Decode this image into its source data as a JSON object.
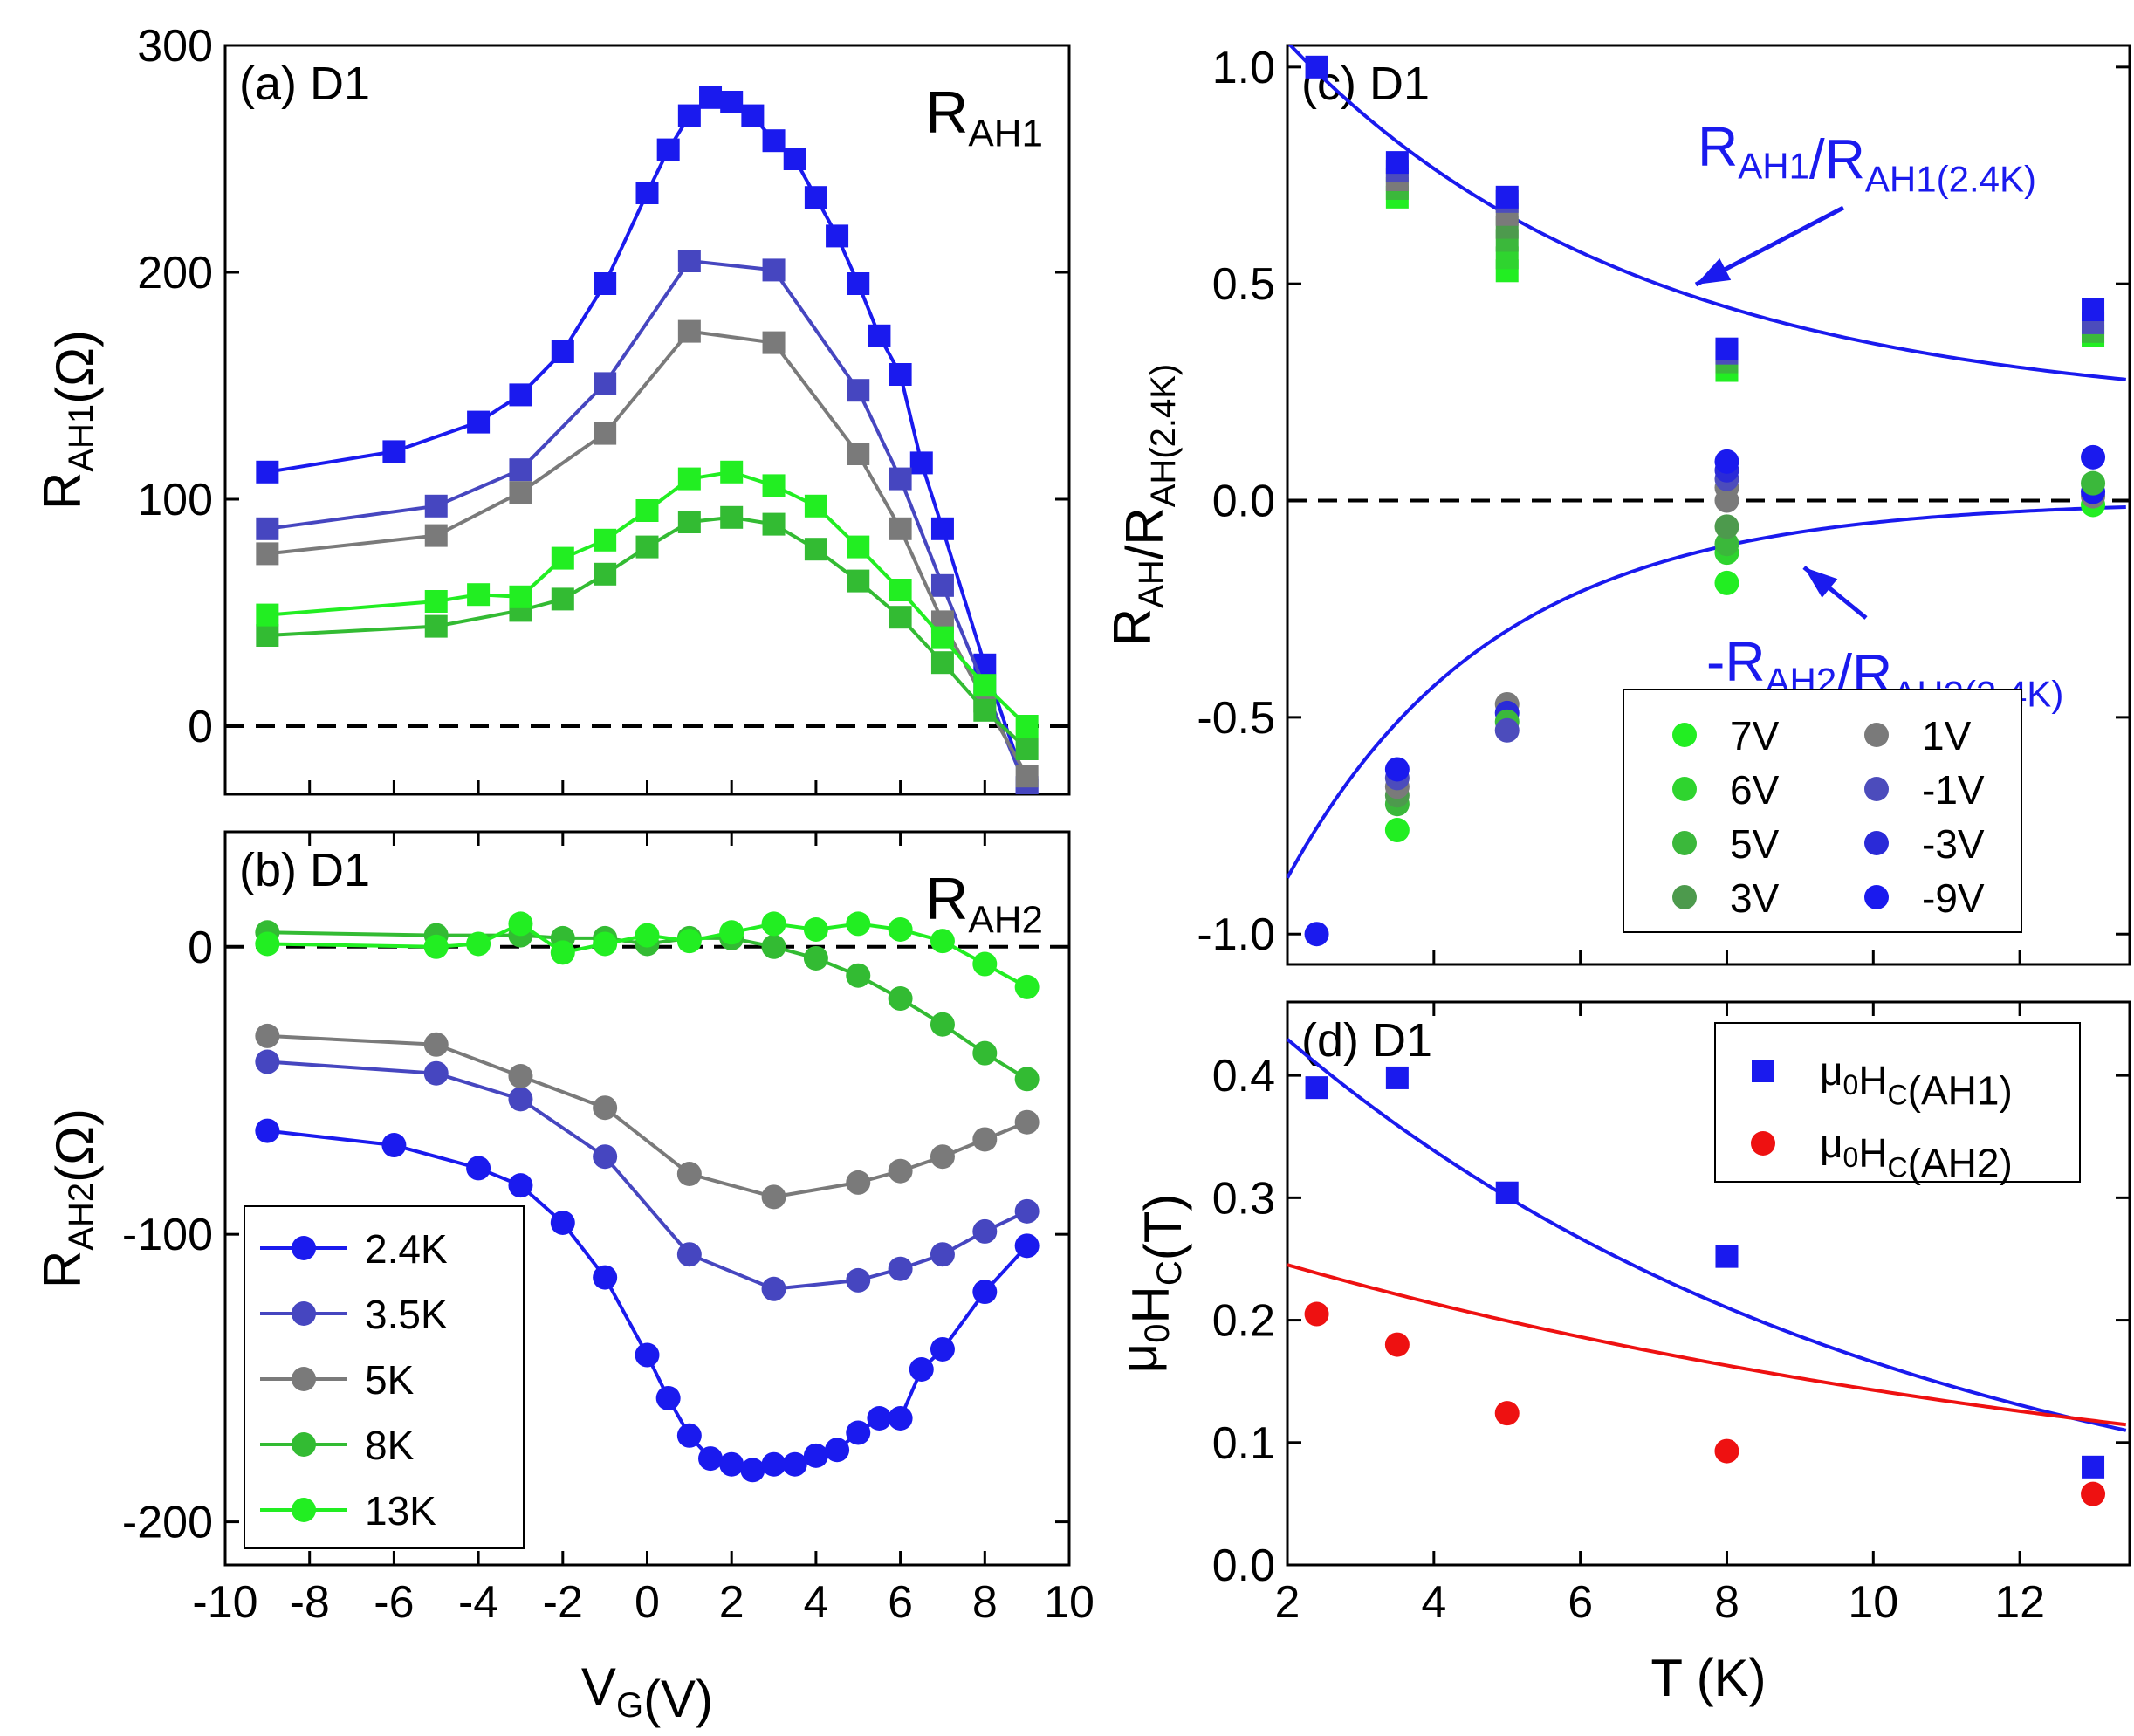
{
  "chart_data": [
    {
      "id": "a",
      "type": "line",
      "panel_label": "(a) D1",
      "corner_label": {
        "main": "R",
        "sub": "AH1"
      },
      "xlabel": "",
      "ylabel": {
        "main": "R",
        "sub": "AH1",
        "tail": "(Ω)"
      },
      "xlim": [
        -10,
        10
      ],
      "ylim": [
        -30,
        300
      ],
      "xticks": [],
      "yticks": [
        0,
        100,
        200,
        300
      ],
      "ytick_labels": [
        "0",
        "100",
        "200",
        "300"
      ],
      "marker": "square",
      "zero_line": true,
      "series": [
        {
          "name": "2.4K",
          "color": "#1a1aee",
          "x": [
            -9,
            -6,
            -4,
            -3,
            -2,
            -1,
            0,
            0.5,
            1,
            1.5,
            2,
            2.5,
            3,
            3.5,
            4,
            4.5,
            5,
            5.5,
            6,
            6.5,
            7,
            8,
            9
          ],
          "y": [
            112,
            121,
            134,
            146,
            165,
            195,
            235,
            254,
            269,
            277,
            275,
            269,
            258,
            250,
            233,
            216,
            195,
            172,
            155,
            116,
            87,
            27,
            -27
          ]
        },
        {
          "name": "3.5K",
          "color": "#4646c0",
          "x": [
            -9,
            -5,
            -3,
            -1,
            1,
            3,
            5,
            6,
            7,
            8,
            9
          ],
          "y": [
            87,
            97,
            113,
            151,
            205,
            201,
            148,
            109,
            62,
            17,
            -28
          ]
        },
        {
          "name": "5K",
          "color": "#7a7a7a",
          "x": [
            -9,
            -5,
            -3,
            -1,
            1,
            3,
            5,
            6,
            7,
            8,
            9
          ],
          "y": [
            76,
            84,
            103,
            129,
            174,
            169,
            120,
            87,
            46,
            11,
            -22
          ]
        },
        {
          "name": "8K",
          "color": "#33bb33",
          "x": [
            -9,
            -5,
            -3,
            -2,
            -1,
            0,
            1,
            2,
            3,
            4,
            5,
            6,
            7,
            8,
            9
          ],
          "y": [
            40,
            44,
            51,
            56,
            67,
            79,
            90,
            92,
            89,
            78,
            64,
            48,
            28,
            7,
            -10
          ]
        },
        {
          "name": "13K",
          "color": "#22ee22",
          "x": [
            -9,
            -5,
            -4,
            -3,
            -2,
            -1,
            0,
            1,
            2,
            3,
            4,
            5,
            6,
            7,
            8,
            9
          ],
          "y": [
            49,
            55,
            58,
            57,
            74,
            82,
            95,
            109,
            112,
            106,
            97,
            79,
            60,
            39,
            18,
            0
          ]
        }
      ]
    },
    {
      "id": "b",
      "type": "line",
      "panel_label": "(b) D1",
      "corner_label": {
        "main": "R",
        "sub": "AH2"
      },
      "xlabel": {
        "main": "V",
        "sub": "G",
        "tail": "(V)"
      },
      "ylabel": {
        "main": "R",
        "sub": "AH2",
        "tail": "(Ω)"
      },
      "xlim": [
        -10,
        10
      ],
      "ylim": [
        -215,
        40
      ],
      "xticks": [
        -10,
        -8,
        -6,
        -4,
        -2,
        0,
        2,
        4,
        6,
        8,
        10
      ],
      "xtick_labels": [
        "-10",
        "-8",
        "-6",
        "-4",
        "-2",
        "0",
        "2",
        "4",
        "6",
        "8",
        "10"
      ],
      "yticks": [
        -200,
        -100,
        0
      ],
      "ytick_labels": [
        "-200",
        "-100",
        "0"
      ],
      "marker": "circle",
      "zero_line": true,
      "legend_position": "bottom-left",
      "series": [
        {
          "name": "2.4K",
          "color": "#1a1aee",
          "x": [
            -9,
            -6,
            -4,
            -3,
            -2,
            -1,
            0,
            0.5,
            1,
            1.5,
            2,
            2.5,
            3,
            3.5,
            4,
            4.5,
            5,
            5.5,
            6,
            6.5,
            7,
            8,
            9
          ],
          "y": [
            -64,
            -69,
            -77,
            -83,
            -96,
            -115,
            -142,
            -157,
            -170,
            -178,
            -180,
            -182,
            -180,
            -180,
            -177,
            -175,
            -169,
            -164,
            -164,
            -147,
            -140,
            -120,
            -104
          ]
        },
        {
          "name": "3.5K",
          "color": "#4646c0",
          "x": [
            -9,
            -5,
            -3,
            -1,
            1,
            3,
            5,
            6,
            7,
            8,
            9
          ],
          "y": [
            -40,
            -44,
            -53,
            -73,
            -107,
            -119,
            -116,
            -112,
            -107,
            -99,
            -92
          ]
        },
        {
          "name": "5K",
          "color": "#7a7a7a",
          "x": [
            -9,
            -5,
            -3,
            -1,
            1,
            3,
            5,
            6,
            7,
            8,
            9
          ],
          "y": [
            -31,
            -34,
            -45,
            -56,
            -79,
            -87,
            -82,
            -78,
            -73,
            -67,
            -61
          ]
        },
        {
          "name": "8K",
          "color": "#33bb33",
          "x": [
            -9,
            -5,
            -3,
            -2,
            -1,
            0,
            1,
            2,
            3,
            4,
            5,
            6,
            7,
            8,
            9
          ],
          "y": [
            5,
            4,
            4,
            3,
            3,
            1,
            3,
            3,
            0,
            -4,
            -10,
            -18,
            -27,
            -37,
            -46
          ]
        },
        {
          "name": "13K",
          "color": "#22ee22",
          "x": [
            -9,
            -5,
            -4,
            -3,
            -2,
            -1,
            0,
            1,
            2,
            3,
            4,
            5,
            6,
            7,
            8,
            9
          ],
          "y": [
            1,
            0,
            1,
            8,
            -2,
            1,
            4,
            2,
            5,
            8,
            6,
            8,
            6,
            2,
            -6,
            -14
          ]
        }
      ]
    },
    {
      "id": "c",
      "type": "scatter",
      "panel_label": "(c) D1",
      "xlabel": "",
      "ylabel": {
        "main": "R",
        "sub": "AH",
        "mid": "/R",
        "sub2": "AH(2.4K)"
      },
      "xlim": [
        2,
        13.5
      ],
      "ylim": [
        -1.07,
        1.05
      ],
      "xticks": [],
      "yticks": [
        -1.0,
        -0.5,
        0.0,
        0.5,
        1.0
      ],
      "ytick_labels": [
        "-1.0",
        "-0.5",
        "0.0",
        "0.5",
        "1.0"
      ],
      "zero_line": true,
      "annotation_ah1": {
        "main": "R",
        "sub": "AH1",
        "mid": "/R",
        "sub2": "AH1(2.4K)"
      },
      "annotation_ah2": {
        "main": "-R",
        "sub": "AH2",
        "mid": "/R",
        "sub2": "AH2(2.4K)"
      },
      "annotation_color": "#1a1aee",
      "fit_ah1": {
        "a": 1.3,
        "b": 0.208,
        "c": 0.2
      },
      "fit_ah2": {
        "a": 1.77,
        "b": 0.355
      },
      "legend_position": "bottom-right",
      "legend": [
        {
          "label": "7V",
          "color": "#22ee22"
        },
        {
          "label": "6V",
          "color": "#2fd42f"
        },
        {
          "label": "5V",
          "color": "#3bb83b"
        },
        {
          "label": "3V",
          "color": "#4d9a4d"
        },
        {
          "label": "1V",
          "color": "#7a7a7a"
        },
        {
          "label": "-1V",
          "color": "#4c4cbc"
        },
        {
          "label": "-3V",
          "color": "#2a2ad8"
        },
        {
          "label": "-9V",
          "color": "#1a1aee"
        }
      ],
      "squares": [
        {
          "x": 2.4,
          "y": 1.0,
          "color": "#1a1aee"
        },
        {
          "x": 3.5,
          "y": 0.7,
          "color": "#22ee22"
        },
        {
          "x": 3.5,
          "y": 0.72,
          "color": "#3bb83b"
        },
        {
          "x": 3.5,
          "y": 0.74,
          "color": "#7a7a7a"
        },
        {
          "x": 3.5,
          "y": 0.76,
          "color": "#4c4cbc"
        },
        {
          "x": 3.5,
          "y": 0.78,
          "color": "#1a1aee"
        },
        {
          "x": 5,
          "y": 0.53,
          "color": "#22ee22"
        },
        {
          "x": 5,
          "y": 0.56,
          "color": "#2fd42f"
        },
        {
          "x": 5,
          "y": 0.6,
          "color": "#3bb83b"
        },
        {
          "x": 5,
          "y": 0.63,
          "color": "#4d9a4d"
        },
        {
          "x": 5,
          "y": 0.66,
          "color": "#7a7a7a"
        },
        {
          "x": 5,
          "y": 0.69,
          "color": "#4c4cbc"
        },
        {
          "x": 5,
          "y": 0.7,
          "color": "#1a1aee"
        },
        {
          "x": 8,
          "y": 0.3,
          "color": "#22ee22"
        },
        {
          "x": 8,
          "y": 0.32,
          "color": "#3bb83b"
        },
        {
          "x": 8,
          "y": 0.34,
          "color": "#4c4cbc"
        },
        {
          "x": 8,
          "y": 0.35,
          "color": "#1a1aee"
        },
        {
          "x": 13,
          "y": 0.38,
          "color": "#22ee22"
        },
        {
          "x": 13,
          "y": 0.39,
          "color": "#3bb83b"
        },
        {
          "x": 13,
          "y": 0.41,
          "color": "#4c4cbc"
        },
        {
          "x": 13,
          "y": 0.44,
          "color": "#1a1aee"
        }
      ],
      "circles": [
        {
          "x": 2.4,
          "y": -1.0,
          "color": "#1a1aee"
        },
        {
          "x": 3.5,
          "y": -0.76,
          "color": "#22ee22"
        },
        {
          "x": 3.5,
          "y": -0.7,
          "color": "#3bb83b"
        },
        {
          "x": 3.5,
          "y": -0.68,
          "color": "#4d9a4d"
        },
        {
          "x": 3.5,
          "y": -0.66,
          "color": "#7a7a7a"
        },
        {
          "x": 3.5,
          "y": -0.64,
          "color": "#4c4cbc"
        },
        {
          "x": 3.5,
          "y": -0.62,
          "color": "#1a1aee"
        },
        {
          "x": 5,
          "y": -0.47,
          "color": "#7a7a7a"
        },
        {
          "x": 5,
          "y": -0.49,
          "color": "#2a2ad8"
        },
        {
          "x": 5,
          "y": -0.51,
          "color": "#3bb83b"
        },
        {
          "x": 5,
          "y": -0.53,
          "color": "#4c4cbc"
        },
        {
          "x": 8,
          "y": -0.19,
          "color": "#22ee22"
        },
        {
          "x": 8,
          "y": -0.12,
          "color": "#2fd42f"
        },
        {
          "x": 8,
          "y": -0.1,
          "color": "#3bb83b"
        },
        {
          "x": 8,
          "y": -0.06,
          "color": "#4d9a4d"
        },
        {
          "x": 8,
          "y": 0.0,
          "color": "#7a7a7a"
        },
        {
          "x": 8,
          "y": 0.03,
          "color": "#7a7a7a"
        },
        {
          "x": 8,
          "y": 0.05,
          "color": "#4c4cbc"
        },
        {
          "x": 8,
          "y": 0.07,
          "color": "#2a2ad8"
        },
        {
          "x": 8,
          "y": 0.09,
          "color": "#1a1aee"
        },
        {
          "x": 13,
          "y": -0.01,
          "color": "#22ee22"
        },
        {
          "x": 13,
          "y": 0.01,
          "color": "#7a7a7a"
        },
        {
          "x": 13,
          "y": 0.02,
          "color": "#1a1aee"
        },
        {
          "x": 13,
          "y": 0.04,
          "color": "#3bb83b"
        },
        {
          "x": 13,
          "y": 0.1,
          "color": "#1a1aee"
        }
      ]
    },
    {
      "id": "d",
      "type": "scatter",
      "panel_label": "(d) D1",
      "xlabel": "T (K)",
      "ylabel": {
        "main": "μ",
        "sub": "0",
        "mid": "H",
        "sub2": "C",
        "tail": "(T)"
      },
      "xlim": [
        2,
        13.5
      ],
      "ylim": [
        0,
        0.46
      ],
      "xticks": [
        2,
        4,
        6,
        8,
        10,
        12
      ],
      "xtick_labels": [
        "2",
        "4",
        "6",
        "8",
        "10",
        "12"
      ],
      "yticks": [
        0.0,
        0.1,
        0.2,
        0.3,
        0.4
      ],
      "ytick_labels": [
        "0.0",
        "0.1",
        "0.2",
        "0.3",
        "0.4"
      ],
      "legend_position": "top-right",
      "series": [
        {
          "name": "AH1",
          "label": {
            "main": "μ",
            "sub": "0",
            "mid": "H",
            "sub2": "C",
            "tail": "(AH1)"
          },
          "marker": "square",
          "color": "#1a1aee",
          "x": [
            2.4,
            3.5,
            5,
            8,
            13
          ],
          "y": [
            0.39,
            0.398,
            0.304,
            0.252,
            0.08
          ],
          "fit": {
            "a": 0.545,
            "b": 0.119
          }
        },
        {
          "name": "AH2",
          "label": {
            "main": "μ",
            "sub": "0",
            "mid": "H",
            "sub2": "C",
            "tail": "(AH2)"
          },
          "marker": "circle",
          "color": "#ee1111",
          "x": [
            2.4,
            3.5,
            5,
            8,
            13
          ],
          "y": [
            0.205,
            0.18,
            0.124,
            0.093,
            0.058
          ],
          "fit": {
            "a": 0.262,
            "b": 0.0757,
            "c": 0.02
          }
        }
      ]
    }
  ]
}
